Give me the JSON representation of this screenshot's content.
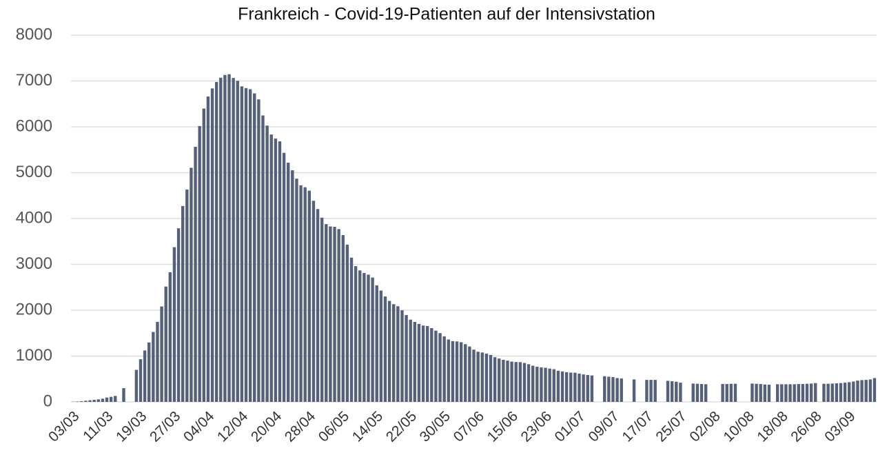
{
  "chart_data": {
    "type": "bar",
    "title": "Frankreich - Covid-19-Patienten auf der Intensivstation",
    "categories": [
      "03/03",
      null,
      null,
      null,
      null,
      null,
      null,
      null,
      "11/03",
      null,
      null,
      null,
      null,
      null,
      null,
      null,
      "19/03",
      null,
      null,
      null,
      null,
      null,
      null,
      null,
      "27/03",
      null,
      null,
      null,
      null,
      null,
      null,
      null,
      "04/04",
      null,
      null,
      null,
      null,
      null,
      null,
      null,
      "12/04",
      null,
      null,
      null,
      null,
      null,
      null,
      null,
      "20/04",
      null,
      null,
      null,
      null,
      null,
      null,
      null,
      "28/04",
      null,
      null,
      null,
      null,
      null,
      null,
      null,
      "06/05",
      null,
      null,
      null,
      null,
      null,
      null,
      null,
      "14/05",
      null,
      null,
      null,
      null,
      null,
      null,
      null,
      "22/05",
      null,
      null,
      null,
      null,
      null,
      null,
      null,
      "30/05",
      null,
      null,
      null,
      null,
      null,
      null,
      null,
      "07/06",
      null,
      null,
      null,
      null,
      null,
      null,
      null,
      "15/06",
      null,
      null,
      null,
      null,
      null,
      null,
      null,
      "23/06",
      null,
      null,
      null,
      null,
      null,
      null,
      null,
      "01/07",
      null,
      null,
      null,
      null,
      null,
      null,
      null,
      "09/07",
      null,
      null,
      null,
      null,
      null,
      null,
      null,
      "17/07",
      null,
      null,
      null,
      null,
      null,
      null,
      null,
      "25/07",
      null,
      null,
      null,
      null,
      null,
      null,
      null,
      "02/08",
      null,
      null,
      null,
      null,
      null,
      null,
      null,
      "10/08",
      null,
      null,
      null,
      null,
      null,
      null,
      null,
      "18/08",
      null,
      null,
      null,
      null,
      null,
      null,
      null,
      "26/08",
      null,
      null,
      null,
      null,
      null,
      null,
      null,
      "03/09",
      null,
      null,
      null,
      null,
      null,
      null
    ],
    "values": [
      3,
      8,
      15,
      25,
      35,
      45,
      55,
      70,
      95,
      110,
      130,
      null,
      300,
      null,
      null,
      699,
      931,
      1122,
      1297,
      1525,
      1746,
      2082,
      2516,
      2827,
      3375,
      3787,
      4273,
      4632,
      5107,
      5565,
      6017,
      6399,
      6662,
      6838,
      6978,
      7072,
      7131,
      7148,
      7066,
      7004,
      6883,
      6845,
      6821,
      6730,
      6599,
      6248,
      6027,
      5833,
      5744,
      5683,
      5433,
      5218,
      5053,
      4870,
      4725,
      4682,
      4608,
      4387,
      4207,
      4019,
      3878,
      3827,
      3819,
      3770,
      3639,
      3430,
      3147,
      2961,
      2868,
      2812,
      2776,
      2712,
      2542,
      2428,
      2299,
      2203,
      2132,
      2087,
      1998,
      1894,
      1794,
      1745,
      1701,
      1665,
      1655,
      1609,
      1555,
      1501,
      1429,
      1361,
      1325,
      1319,
      1302,
      1259,
      1208,
      1140,
      1094,
      1078,
      1053,
      1024,
      975,
      946,
      918,
      900,
      879,
      869,
      867,
      849,
      822,
      789,
      766,
      752,
      744,
      726,
      713,
      680,
      665,
      649,
      639,
      636,
      617,
      599,
      587,
      577,
      null,
      null,
      560,
      550,
      540,
      520,
      510,
      null,
      null,
      490,
      null,
      null,
      480,
      480,
      480,
      null,
      null,
      460,
      450,
      440,
      420,
      null,
      null,
      400,
      395,
      390,
      385,
      null,
      null,
      null,
      390,
      390,
      395,
      395,
      null,
      null,
      null,
      400,
      395,
      390,
      380,
      375,
      null,
      385,
      385,
      385,
      385,
      385,
      390,
      390,
      395,
      400,
      410,
      null,
      395,
      395,
      400,
      405,
      410,
      420,
      430,
      445,
      465,
      475,
      480,
      490,
      520
    ],
    "color": "#55607a",
    "ylim": [
      0,
      8000
    ],
    "yticks": [
      0,
      1000,
      2000,
      3000,
      4000,
      5000,
      6000,
      7000,
      8000
    ],
    "grid": true
  }
}
